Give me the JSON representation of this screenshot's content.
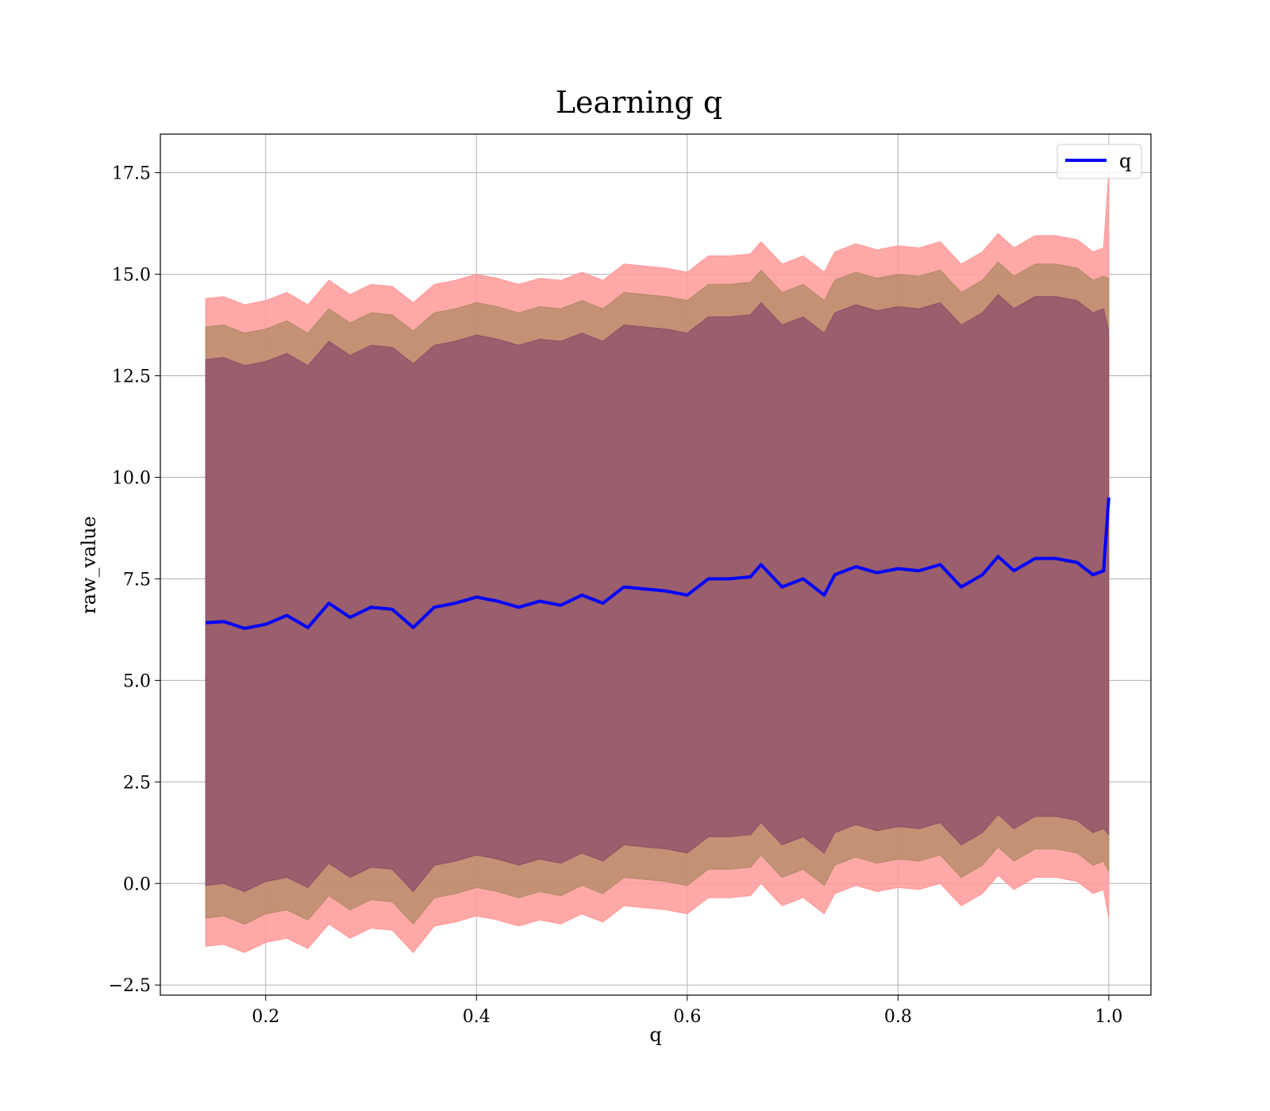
{
  "chart_data": {
    "type": "line",
    "title": "Learning q",
    "xlabel": "q",
    "ylabel": "raw_value",
    "xlim": [
      0.1,
      1.04
    ],
    "ylim": [
      -2.75,
      18.45
    ],
    "xticks": [
      0.2,
      0.4,
      0.6,
      0.8,
      1.0
    ],
    "xtick_labels": [
      "0.2",
      "0.4",
      "0.6",
      "0.8",
      "1.0"
    ],
    "yticks": [
      -2.5,
      0.0,
      2.5,
      5.0,
      7.5,
      10.0,
      12.5,
      15.0,
      17.5
    ],
    "ytick_labels": [
      "−2.5",
      "0.0",
      "2.5",
      "5.0",
      "7.5",
      "10.0",
      "12.5",
      "15.0",
      "17.5"
    ],
    "grid": true,
    "legend": {
      "position": "top-right",
      "entries": [
        "q"
      ]
    },
    "colors": {
      "line": "#0000ff",
      "outer_band": "#ff9999",
      "mid_band": "#b08a64",
      "inner_band": "#8c4e6a"
    },
    "x": [
      0.143,
      0.16,
      0.18,
      0.2,
      0.22,
      0.24,
      0.26,
      0.28,
      0.3,
      0.32,
      0.34,
      0.36,
      0.38,
      0.4,
      0.42,
      0.44,
      0.46,
      0.48,
      0.5,
      0.52,
      0.54,
      0.56,
      0.58,
      0.6,
      0.62,
      0.64,
      0.66,
      0.67,
      0.69,
      0.71,
      0.73,
      0.74,
      0.76,
      0.78,
      0.8,
      0.82,
      0.84,
      0.86,
      0.88,
      0.895,
      0.91,
      0.93,
      0.95,
      0.97,
      0.985,
      0.995,
      1.0
    ],
    "series": [
      {
        "name": "q",
        "values": [
          6.42,
          6.45,
          6.28,
          6.38,
          6.6,
          6.3,
          6.9,
          6.55,
          6.8,
          6.75,
          6.3,
          6.8,
          6.9,
          7.05,
          6.95,
          6.8,
          6.95,
          6.85,
          7.1,
          6.9,
          7.3,
          7.25,
          7.2,
          7.1,
          7.5,
          7.5,
          7.55,
          7.85,
          7.3,
          7.5,
          7.1,
          7.6,
          7.8,
          7.65,
          7.75,
          7.7,
          7.85,
          7.3,
          7.6,
          8.05,
          7.7,
          8.0,
          8.0,
          7.9,
          7.6,
          7.7,
          9.5
        ]
      }
    ],
    "bands": [
      {
        "lower": [
          -1.55,
          -1.5,
          -1.7,
          -1.45,
          -1.35,
          -1.6,
          -1.0,
          -1.35,
          -1.1,
          -1.15,
          -1.7,
          -1.05,
          -0.95,
          -0.8,
          -0.9,
          -1.05,
          -0.9,
          -1.0,
          -0.75,
          -0.95,
          -0.55,
          -0.6,
          -0.65,
          -0.75,
          -0.35,
          -0.35,
          -0.3,
          0.0,
          -0.55,
          -0.35,
          -0.75,
          -0.25,
          -0.05,
          -0.2,
          -0.1,
          -0.15,
          0.0,
          -0.55,
          -0.25,
          0.2,
          -0.15,
          0.15,
          0.15,
          0.05,
          -0.25,
          -0.15,
          -0.85
        ],
        "upper": [
          14.4,
          14.45,
          14.25,
          14.35,
          14.55,
          14.25,
          14.85,
          14.5,
          14.75,
          14.7,
          14.3,
          14.75,
          14.85,
          15.0,
          14.9,
          14.75,
          14.9,
          14.85,
          15.05,
          14.85,
          15.25,
          15.2,
          15.15,
          15.05,
          15.45,
          15.45,
          15.5,
          15.8,
          15.25,
          15.45,
          15.05,
          15.55,
          15.75,
          15.6,
          15.7,
          15.65,
          15.8,
          15.25,
          15.55,
          16.0,
          15.65,
          15.95,
          15.95,
          15.85,
          15.55,
          15.65,
          17.5
        ]
      },
      {
        "lower": [
          -0.85,
          -0.8,
          -1.0,
          -0.75,
          -0.65,
          -0.9,
          -0.3,
          -0.65,
          -0.4,
          -0.45,
          -1.0,
          -0.35,
          -0.25,
          -0.1,
          -0.2,
          -0.35,
          -0.2,
          -0.3,
          -0.05,
          -0.25,
          0.15,
          0.1,
          0.05,
          -0.05,
          0.35,
          0.35,
          0.4,
          0.7,
          0.15,
          0.35,
          -0.05,
          0.45,
          0.65,
          0.5,
          0.6,
          0.55,
          0.7,
          0.15,
          0.45,
          0.9,
          0.55,
          0.85,
          0.85,
          0.75,
          0.45,
          0.55,
          0.3
        ],
        "upper": [
          13.7,
          13.75,
          13.55,
          13.65,
          13.85,
          13.55,
          14.15,
          13.8,
          14.05,
          14.0,
          13.6,
          14.05,
          14.15,
          14.3,
          14.2,
          14.05,
          14.2,
          14.15,
          14.35,
          14.15,
          14.55,
          14.5,
          14.45,
          14.35,
          14.75,
          14.75,
          14.8,
          15.1,
          14.55,
          14.75,
          14.35,
          14.85,
          15.05,
          14.9,
          15.0,
          14.95,
          15.1,
          14.55,
          14.85,
          15.3,
          14.95,
          15.25,
          15.25,
          15.15,
          14.85,
          14.95,
          14.9
        ]
      },
      {
        "lower": [
          -0.05,
          0.0,
          -0.2,
          0.05,
          0.15,
          -0.1,
          0.5,
          0.15,
          0.4,
          0.35,
          -0.2,
          0.45,
          0.55,
          0.7,
          0.6,
          0.45,
          0.6,
          0.5,
          0.75,
          0.55,
          0.95,
          0.9,
          0.85,
          0.75,
          1.15,
          1.15,
          1.2,
          1.5,
          0.95,
          1.15,
          0.75,
          1.25,
          1.45,
          1.3,
          1.4,
          1.35,
          1.5,
          0.95,
          1.25,
          1.7,
          1.35,
          1.65,
          1.65,
          1.55,
          1.25,
          1.35,
          1.2
        ],
        "upper": [
          12.9,
          12.95,
          12.75,
          12.85,
          13.05,
          12.75,
          13.35,
          13.0,
          13.25,
          13.2,
          12.8,
          13.25,
          13.35,
          13.5,
          13.4,
          13.25,
          13.4,
          13.35,
          13.55,
          13.35,
          13.75,
          13.7,
          13.65,
          13.55,
          13.95,
          13.95,
          14.0,
          14.3,
          13.75,
          13.95,
          13.55,
          14.05,
          14.25,
          14.1,
          14.2,
          14.15,
          14.3,
          13.75,
          14.05,
          14.5,
          14.15,
          14.45,
          14.45,
          14.35,
          14.05,
          14.15,
          13.6
        ]
      }
    ]
  }
}
